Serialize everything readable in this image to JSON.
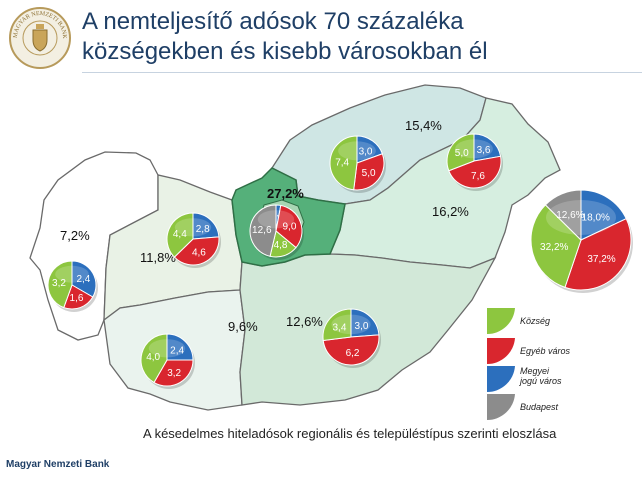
{
  "header": {
    "title_line1": "A nemteljesítő adósok 70 százaléka",
    "title_line2": "községekben és kisebb városokban él",
    "logo_text": "MAGYAR NEMZETI BANK"
  },
  "colors": {
    "kozseg": "#8dc63f",
    "egyeb_varos": "#d9262e",
    "megyei_jogu_varos": "#2c6fbd",
    "budapest": "#8c8c8c",
    "title": "#1f3f66"
  },
  "chart_data": {
    "type": "pie",
    "title": "A késedelmes hiteladósok regionális és településtípus szerinti eloszlása",
    "unit": "%",
    "legend": {
      "placement": "bottom-right",
      "entries": [
        {
          "key": "kozseg",
          "label": "Község"
        },
        {
          "key": "egyeb_varos",
          "label": "Egyéb város"
        },
        {
          "key": "megyei_jogu_varos",
          "label": "Megyei\njogú város"
        },
        {
          "key": "budapest",
          "label": "Budapest"
        }
      ]
    },
    "regions": [
      {
        "id": "nyugat-dunantul",
        "share": "7,2%",
        "slices": {
          "kozseg": 3.2,
          "egyeb_varos": 1.6,
          "megyei_jogu_varos": 2.4
        }
      },
      {
        "id": "kozep-dunantul",
        "share": "11,8%",
        "slices": {
          "kozseg": 4.4,
          "egyeb_varos": 4.6,
          "megyei_jogu_varos": 2.8
        }
      },
      {
        "id": "kozep-magyarorszag",
        "share": "27,2%",
        "slices": {
          "kozseg": 4.8,
          "egyeb_varos": 9.0,
          "megyei_jogu_varos": 0.8,
          "budapest": 12.6
        }
      },
      {
        "id": "eszak-magyarorszag",
        "share": "15,4%",
        "slices": {
          "kozseg": 7.4,
          "egyeb_varos": 5.0,
          "megyei_jogu_varos": 3.0
        }
      },
      {
        "id": "eszak-alfold",
        "share": "16,2%",
        "slices": {
          "kozseg": 5.0,
          "egyeb_varos": 7.6,
          "megyei_jogu_varos": 3.6
        }
      },
      {
        "id": "del-dunantul",
        "share": "9,6%",
        "slices": {
          "kozseg": 4.0,
          "egyeb_varos": 3.2,
          "megyei_jogu_varos": 2.4
        }
      },
      {
        "id": "del-alfold",
        "share": "12,6%",
        "slices": {
          "kozseg": 3.4,
          "egyeb_varos": 6.2,
          "megyei_jogu_varos": 3.0
        }
      },
      {
        "id": "orszagos",
        "share": "",
        "slices": {
          "kozseg": 32.2,
          "egyeb_varos": 37.2,
          "megyei_jogu_varos": 18.0,
          "budapest": 12.6
        }
      }
    ]
  },
  "footer": {
    "bank_name": "Magyar Nemzeti Bank"
  }
}
